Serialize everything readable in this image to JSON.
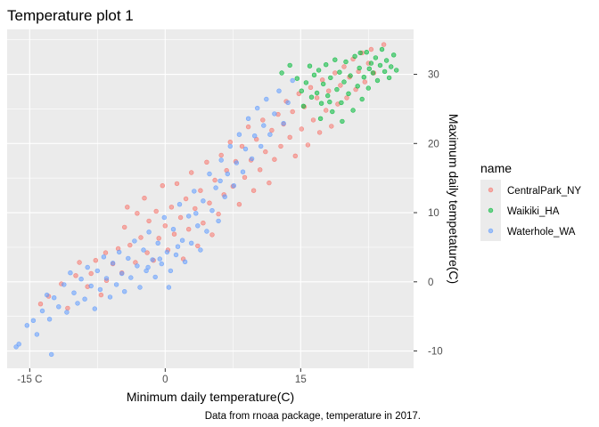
{
  "chart_data": {
    "type": "scatter",
    "title": "Temperature plot 1",
    "xlabel": "Minimum daily temperature(C)",
    "ylabel": "Maximum daily tempetature(C)",
    "caption": "Data from rnoaa package, temperature in 2017.",
    "xlim": [
      -17.5,
      27.5
    ],
    "ylim": [
      -12.5,
      36.5
    ],
    "x_ticks": [
      -15,
      0,
      15
    ],
    "x_tick_labels": [
      "-15 C",
      "0",
      "15"
    ],
    "y_ticks": [
      -10,
      0,
      10,
      20,
      30
    ],
    "y_tick_labels": [
      "-10",
      "0",
      "10",
      "20",
      "30"
    ],
    "grid": true,
    "y_axis_position": "right",
    "legend": {
      "title": "name",
      "position": "right"
    },
    "series": [
      {
        "name": "CentralPark_NY",
        "color": "#F8766D",
        "points": [
          [
            -13.8,
            -3.2
          ],
          [
            -12.9,
            -2.1
          ],
          [
            -11.5,
            -0.3
          ],
          [
            -10.8,
            -3.8
          ],
          [
            -9.9,
            0.9
          ],
          [
            -9.5,
            2.8
          ],
          [
            -8.6,
            -0.7
          ],
          [
            -8.2,
            1.2
          ],
          [
            -7.7,
            3.1
          ],
          [
            -7.1,
            -1.9
          ],
          [
            -6.6,
            4.2
          ],
          [
            -6.5,
            0.2
          ],
          [
            -5.8,
            2.6
          ],
          [
            -5.2,
            4.8
          ],
          [
            -4.8,
            1.3
          ],
          [
            -4.5,
            7.9
          ],
          [
            -4.2,
            10.8
          ],
          [
            -3.9,
            5.3
          ],
          [
            -3.3,
            2.8
          ],
          [
            -3.1,
            9.9
          ],
          [
            -2.7,
            6.4
          ],
          [
            -2.3,
            12.1
          ],
          [
            -2.0,
            4.2
          ],
          [
            -1.8,
            8.8
          ],
          [
            -1.3,
            3.1
          ],
          [
            -1.0,
            10.2
          ],
          [
            -0.7,
            6.3
          ],
          [
            -0.3,
            13.9
          ],
          [
            0.0,
            8.1
          ],
          [
            0.3,
            4.6
          ],
          [
            0.7,
            10.8
          ],
          [
            1.0,
            6.9
          ],
          [
            1.3,
            14.2
          ],
          [
            1.7,
            9.3
          ],
          [
            2.0,
            3.3
          ],
          [
            2.3,
            12.0
          ],
          [
            2.6,
            7.6
          ],
          [
            2.9,
            15.8
          ],
          [
            3.3,
            10.6
          ],
          [
            3.6,
            5.2
          ],
          [
            3.9,
            13.2
          ],
          [
            4.2,
            8.5
          ],
          [
            4.6,
            17.3
          ],
          [
            4.9,
            11.4
          ],
          [
            5.2,
            6.8
          ],
          [
            5.5,
            14.7
          ],
          [
            5.9,
            9.8
          ],
          [
            6.2,
            18.3
          ],
          [
            6.5,
            12.6
          ],
          [
            6.8,
            16.1
          ],
          [
            7.2,
            20.2
          ],
          [
            7.5,
            13.8
          ],
          [
            7.8,
            17.4
          ],
          [
            8.2,
            11.2
          ],
          [
            8.5,
            19.6
          ],
          [
            8.8,
            15.1
          ],
          [
            9.2,
            22.4
          ],
          [
            9.5,
            17.6
          ],
          [
            9.8,
            13.2
          ],
          [
            10.1,
            20.6
          ],
          [
            10.5,
            16.2
          ],
          [
            10.8,
            23.4
          ],
          [
            11.1,
            18.8
          ],
          [
            11.5,
            14.3
          ],
          [
            11.8,
            21.9
          ],
          [
            12.1,
            17.7
          ],
          [
            12.5,
            24.2
          ],
          [
            12.8,
            19.6
          ],
          [
            13.1,
            22.8
          ],
          [
            13.4,
            26.1
          ],
          [
            13.8,
            20.9
          ],
          [
            14.1,
            24.6
          ],
          [
            14.4,
            18.2
          ],
          [
            14.8,
            27.2
          ],
          [
            15.1,
            22.1
          ],
          [
            15.4,
            25.3
          ],
          [
            15.8,
            19.8
          ],
          [
            16.1,
            28.1
          ],
          [
            16.4,
            23.4
          ],
          [
            16.8,
            26.6
          ],
          [
            17.1,
            21.6
          ],
          [
            17.4,
            29.2
          ],
          [
            17.8,
            24.8
          ],
          [
            18.1,
            27.6
          ],
          [
            18.4,
            22.5
          ],
          [
            18.8,
            30.2
          ],
          [
            19.1,
            25.7
          ],
          [
            19.4,
            28.4
          ],
          [
            19.8,
            31.1
          ],
          [
            20.1,
            26.6
          ],
          [
            20.4,
            29.6
          ],
          [
            20.8,
            32.2
          ],
          [
            21.1,
            27.8
          ],
          [
            21.4,
            30.4
          ],
          [
            21.8,
            33.1
          ],
          [
            22.1,
            28.9
          ],
          [
            22.5,
            31.6
          ],
          [
            22.8,
            33.6
          ],
          [
            23.1,
            30.2
          ],
          [
            24.2,
            34.3
          ]
        ]
      },
      {
        "name": "Waikiki_HA",
        "color": "#00BA38",
        "points": [
          [
            12.9,
            30.2
          ],
          [
            13.8,
            31.3
          ],
          [
            14.6,
            29.4
          ],
          [
            15.1,
            27.6
          ],
          [
            15.3,
            25.4
          ],
          [
            15.6,
            28.8
          ],
          [
            16.0,
            31.2
          ],
          [
            16.2,
            26.7
          ],
          [
            16.5,
            29.9
          ],
          [
            16.8,
            27.3
          ],
          [
            17.0,
            30.6
          ],
          [
            17.3,
            25.8
          ],
          [
            17.5,
            28.6
          ],
          [
            17.8,
            31.4
          ],
          [
            18.0,
            26.9
          ],
          [
            18.3,
            29.5
          ],
          [
            18.5,
            24.6
          ],
          [
            18.8,
            32.1
          ],
          [
            19.0,
            27.8
          ],
          [
            19.3,
            30.3
          ],
          [
            19.5,
            25.9
          ],
          [
            19.8,
            28.9
          ],
          [
            20.0,
            31.8
          ],
          [
            20.3,
            27.2
          ],
          [
            20.5,
            29.8
          ],
          [
            20.8,
            24.8
          ],
          [
            21.0,
            32.6
          ],
          [
            21.3,
            28.3
          ],
          [
            21.5,
            30.9
          ],
          [
            21.8,
            26.4
          ],
          [
            22.0,
            29.6
          ],
          [
            22.3,
            33.2
          ],
          [
            22.5,
            28.0
          ],
          [
            22.8,
            31.6
          ],
          [
            23.0,
            30.2
          ],
          [
            23.3,
            32.4
          ],
          [
            23.5,
            29.1
          ],
          [
            23.8,
            31.3
          ],
          [
            24.0,
            33.6
          ],
          [
            24.3,
            30.4
          ],
          [
            24.5,
            32.0
          ],
          [
            24.8,
            29.5
          ],
          [
            25.0,
            31.1
          ],
          [
            25.3,
            32.8
          ],
          [
            25.6,
            30.6
          ],
          [
            19.6,
            23.2
          ],
          [
            17.2,
            23.6
          ],
          [
            21.6,
            33.1
          ],
          [
            18.2,
            26.0
          ],
          [
            22.6,
            30.8
          ]
        ]
      },
      {
        "name": "Waterhole_WA",
        "color": "#619CFF",
        "points": [
          [
            -16.5,
            -9.4
          ],
          [
            -16.2,
            -9.0
          ],
          [
            -15.3,
            -6.3
          ],
          [
            -14.6,
            -5.6
          ],
          [
            -14.2,
            -7.6
          ],
          [
            -13.6,
            -4.2
          ],
          [
            -13.1,
            -1.9
          ],
          [
            -12.8,
            -5.4
          ],
          [
            -12.6,
            -10.5
          ],
          [
            -12.3,
            -2.3
          ],
          [
            -11.8,
            -3.6
          ],
          [
            -11.2,
            -0.4
          ],
          [
            -10.9,
            -4.4
          ],
          [
            -10.5,
            1.3
          ],
          [
            -10.1,
            -1.6
          ],
          [
            -9.7,
            -3.1
          ],
          [
            -9.3,
            0.4
          ],
          [
            -8.9,
            -2.5
          ],
          [
            -8.6,
            2.1
          ],
          [
            -8.2,
            -0.6
          ],
          [
            -7.8,
            -3.9
          ],
          [
            -7.5,
            1.6
          ],
          [
            -7.2,
            -1.1
          ],
          [
            -6.8,
            3.6
          ],
          [
            -6.5,
            0.5
          ],
          [
            -6.1,
            -2.2
          ],
          [
            -5.8,
            2.7
          ],
          [
            -5.4,
            -0.4
          ],
          [
            -5.1,
            4.3
          ],
          [
            -4.8,
            1.2
          ],
          [
            -4.5,
            -1.4
          ],
          [
            -4.1,
            3.4
          ],
          [
            -3.8,
            0.6
          ],
          [
            -3.4,
            5.9
          ],
          [
            -3.1,
            2.3
          ],
          [
            -2.8,
            -0.8
          ],
          [
            -2.4,
            4.6
          ],
          [
            -2.1,
            1.6
          ],
          [
            -1.8,
            7.2
          ],
          [
            -1.4,
            3.2
          ],
          [
            -1.1,
            0.7
          ],
          [
            -0.8,
            5.6
          ],
          [
            -0.4,
            2.6
          ],
          [
            -0.1,
            9.3
          ],
          [
            0.2,
            4.3
          ],
          [
            0.6,
            1.6
          ],
          [
            0.9,
            7.6
          ],
          [
            1.2,
            3.9
          ],
          [
            1.6,
            11.2
          ],
          [
            1.9,
            6.0
          ],
          [
            2.2,
            2.9
          ],
          [
            2.6,
            9.5
          ],
          [
            2.9,
            5.6
          ],
          [
            3.2,
            13.1
          ],
          [
            3.6,
            8.1
          ],
          [
            3.9,
            4.6
          ],
          [
            4.2,
            11.7
          ],
          [
            4.6,
            7.3
          ],
          [
            4.9,
            15.6
          ],
          [
            5.2,
            10.3
          ],
          [
            5.6,
            13.6
          ],
          [
            5.9,
            8.8
          ],
          [
            6.2,
            17.6
          ],
          [
            6.6,
            12.3
          ],
          [
            6.9,
            15.6
          ],
          [
            7.2,
            19.6
          ],
          [
            7.6,
            13.9
          ],
          [
            7.9,
            17.2
          ],
          [
            8.2,
            21.3
          ],
          [
            8.6,
            15.9
          ],
          [
            8.9,
            19.2
          ],
          [
            9.2,
            23.6
          ],
          [
            9.6,
            17.8
          ],
          [
            9.9,
            21.1
          ],
          [
            10.2,
            25.1
          ],
          [
            10.6,
            19.6
          ],
          [
            10.9,
            22.6
          ],
          [
            11.2,
            26.4
          ],
          [
            11.6,
            21.3
          ],
          [
            12.1,
            24.3
          ],
          [
            12.6,
            27.6
          ],
          [
            13.1,
            22.9
          ],
          [
            13.6,
            25.9
          ],
          [
            14.1,
            29.1
          ],
          [
            -0.6,
            3.3
          ],
          [
            0.4,
            -0.8
          ],
          [
            1.4,
            5.1
          ],
          [
            -1.9,
            2.1
          ],
          [
            3.4,
            9.9
          ],
          [
            6.1,
            14.6
          ]
        ]
      }
    ]
  }
}
